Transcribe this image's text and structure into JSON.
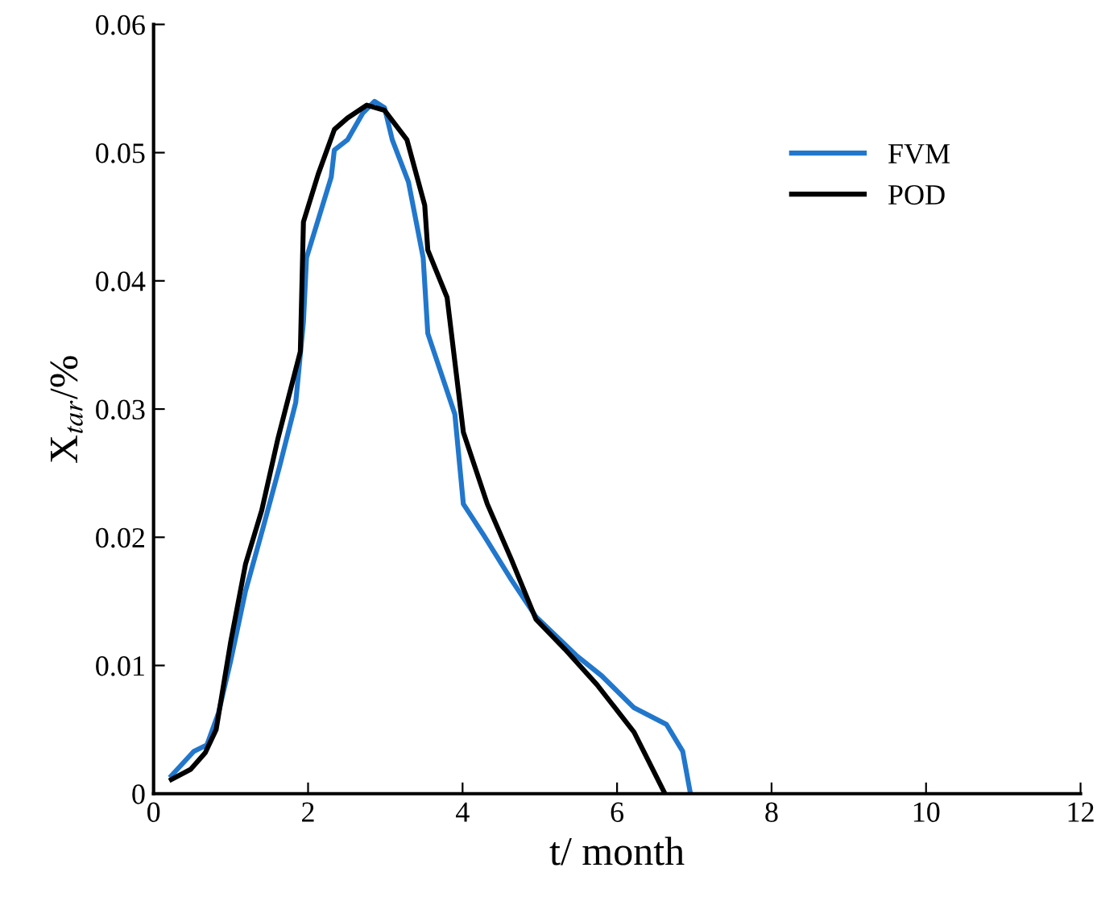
{
  "chart_data": {
    "type": "line",
    "xlabel": "t/ month",
    "ylabel": "X$_{tar}$/%",
    "xlim": [
      0,
      12
    ],
    "xticks": [
      0,
      2,
      4,
      6,
      8,
      10,
      12
    ],
    "ylim": [
      0,
      0.06
    ],
    "yticks": [
      0,
      0.01,
      0.02,
      0.03,
      0.04,
      0.05,
      0.06
    ],
    "grid": false,
    "legend": "top right",
    "marker": "none",
    "line_style": "solid",
    "series": [
      {
        "name": "FVM",
        "color": "#2177cc",
        "x": [
          0.23,
          0.52,
          0.69,
          0.84,
          1.0,
          1.19,
          1.42,
          1.63,
          1.84,
          1.94,
          1.98,
          2.3,
          2.34,
          2.51,
          2.71,
          2.86,
          2.99,
          3.09,
          3.3,
          3.49,
          3.55,
          3.9,
          4.01,
          4.28,
          4.63,
          4.95,
          5.47,
          5.8,
          6.22,
          6.64,
          6.85,
          6.95
        ],
        "values": [
          0.0014,
          0.0033,
          0.0038,
          0.0063,
          0.0104,
          0.0158,
          0.0208,
          0.0255,
          0.0305,
          0.0368,
          0.0418,
          0.0481,
          0.0502,
          0.051,
          0.0531,
          0.054,
          0.0535,
          0.051,
          0.0477,
          0.0418,
          0.0359,
          0.0296,
          0.0226,
          0.0201,
          0.0167,
          0.0138,
          0.0108,
          0.0092,
          0.0067,
          0.0054,
          0.0033,
          0.0
        ]
      },
      {
        "name": "POD",
        "color": "#000000",
        "x": [
          0.23,
          0.48,
          0.67,
          0.81,
          1.0,
          1.19,
          1.4,
          1.61,
          1.9,
          1.94,
          2.13,
          2.34,
          2.51,
          2.76,
          2.99,
          3.28,
          3.51,
          3.55,
          3.8,
          4.01,
          4.32,
          4.63,
          4.95,
          5.32,
          5.74,
          6.22,
          6.62
        ],
        "values": [
          0.0011,
          0.0019,
          0.0032,
          0.005,
          0.0119,
          0.0179,
          0.0221,
          0.0277,
          0.0345,
          0.0446,
          0.0483,
          0.0518,
          0.0527,
          0.0537,
          0.0533,
          0.051,
          0.0459,
          0.0424,
          0.0387,
          0.0282,
          0.0226,
          0.0183,
          0.0136,
          0.0113,
          0.0085,
          0.0048,
          0.0
        ]
      }
    ]
  }
}
